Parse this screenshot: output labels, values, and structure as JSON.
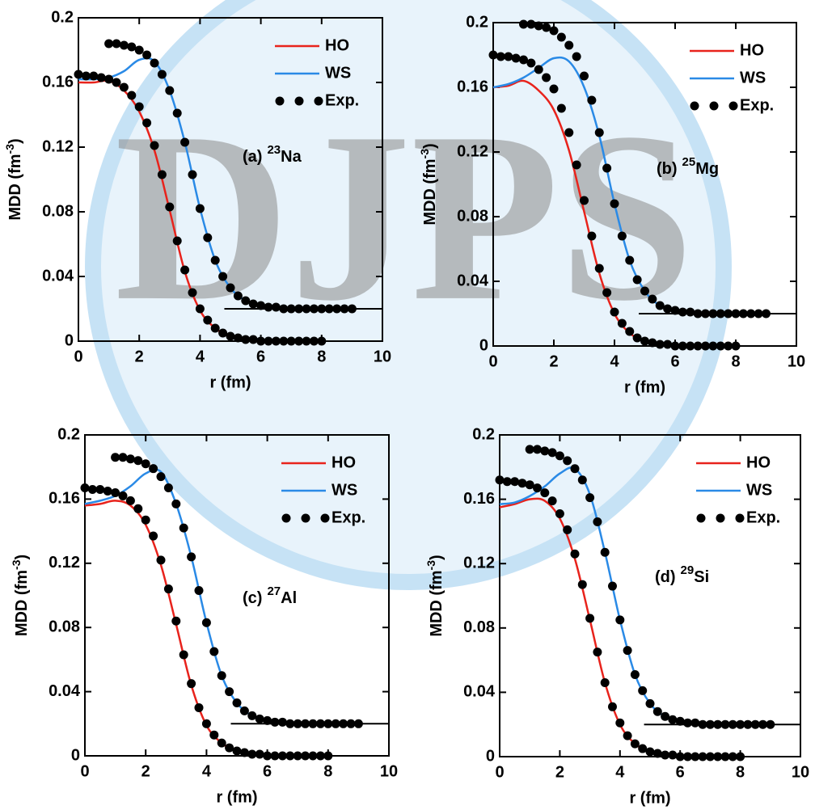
{
  "watermark": "DJPS",
  "chart_data": [
    {
      "type": "line",
      "panel_label": "(a)",
      "isotope_mass": "23",
      "isotope_element": "Na",
      "xlabel": "r (fm)",
      "ylabel": "MDD (fm",
      "ylabel_sup": "-3",
      "ylabel_end": ")",
      "xlim": [
        0,
        10
      ],
      "xticks": [
        0,
        2,
        4,
        6,
        8,
        10
      ],
      "ylim": [
        0,
        0.2
      ],
      "yticks": [
        0,
        0.04,
        0.08,
        0.12,
        0.16,
        0.2
      ],
      "series": [
        {
          "name": "HO",
          "type": "line",
          "color": "#e8231c",
          "x": [
            0,
            0.5,
            1,
            1.5,
            2,
            2.5,
            3,
            3.5,
            4,
            4.5,
            5,
            5.5,
            6,
            6.5,
            7,
            7.5,
            8
          ],
          "values": [
            0.16,
            0.16,
            0.161,
            0.155,
            0.142,
            0.118,
            0.081,
            0.043,
            0.019,
            0.008,
            0.003,
            0.001,
            0,
            0,
            0,
            0,
            0
          ]
        },
        {
          "name": "WS",
          "type": "line",
          "color": "#2a8ae6",
          "x": [
            0,
            0.5,
            1,
            1.5,
            2,
            2.5,
            3,
            3.5,
            4,
            4.5,
            5,
            5.5,
            6,
            6.5,
            7,
            7.5,
            8,
            8.5,
            9
          ],
          "values": [
            0.162,
            0.162,
            0.163,
            0.167,
            0.174,
            0.173,
            0.155,
            0.123,
            0.082,
            0.05,
            0.033,
            0.025,
            0.022,
            0.021,
            0.02,
            0.02,
            0.02,
            0.02,
            0.02
          ]
        },
        {
          "name": "Exp.",
          "type": "scatter",
          "color": "#000000",
          "x": [
            0,
            0.25,
            0.5,
            0.75,
            1,
            1.25,
            1.5,
            1.75,
            2,
            2.25,
            2.5,
            2.75,
            3,
            3.25,
            3.5,
            3.75,
            4,
            4.25,
            4.5,
            4.75,
            5,
            5.25,
            5.5,
            5.75,
            6,
            6.25,
            6.5,
            6.75,
            7,
            7.25,
            7.5,
            7.75,
            8,
            1,
            1.25,
            1.5,
            1.75,
            2,
            2.25,
            2.5,
            2.75,
            3,
            3.25,
            3.5,
            3.75,
            4,
            4.25,
            4.5,
            4.75,
            5,
            5.25,
            5.5,
            5.75,
            6,
            6.25,
            6.5,
            6.75,
            7,
            7.25,
            7.5,
            7.75,
            8,
            8.25,
            8.5,
            8.75,
            9
          ],
          "values": [
            0.165,
            0.164,
            0.164,
            0.163,
            0.162,
            0.16,
            0.157,
            0.152,
            0.145,
            0.135,
            0.121,
            0.103,
            0.083,
            0.062,
            0.044,
            0.03,
            0.02,
            0.013,
            0.008,
            0.005,
            0.003,
            0.002,
            0.001,
            0.001,
            0,
            0,
            0,
            0,
            0,
            0,
            0,
            0,
            0,
            0.184,
            0.184,
            0.183,
            0.182,
            0.18,
            0.177,
            0.172,
            0.165,
            0.155,
            0.141,
            0.123,
            0.103,
            0.082,
            0.064,
            0.05,
            0.04,
            0.033,
            0.028,
            0.025,
            0.023,
            0.022,
            0.021,
            0.021,
            0.02,
            0.02,
            0.02,
            0.02,
            0.02,
            0.02,
            0.02,
            0.02,
            0.02,
            0.02
          ]
        }
      ],
      "baseline": {
        "x": [
          4.8,
          10
        ],
        "values": [
          0.02,
          0.02
        ],
        "color": "#000000"
      }
    },
    {
      "type": "line",
      "panel_label": "(b)",
      "isotope_mass": "25",
      "isotope_element": "Mg",
      "xlabel": "r (fm)",
      "ylabel": "MDD (fm",
      "ylabel_sup": "-3",
      "ylabel_end": ")",
      "xlim": [
        0,
        10
      ],
      "xticks": [
        0,
        2,
        4,
        6,
        8,
        10
      ],
      "ylim": [
        0,
        0.2
      ],
      "yticks": [
        0,
        0.04,
        0.08,
        0.12,
        0.16,
        0.2
      ],
      "series": [
        {
          "name": "HO",
          "type": "line",
          "color": "#e8231c",
          "x": [
            0,
            0.5,
            1,
            1.5,
            2,
            2.5,
            3,
            3.5,
            4,
            4.5,
            5,
            5.5,
            6,
            6.5,
            7,
            7.5,
            8
          ],
          "values": [
            0.16,
            0.161,
            0.164,
            0.158,
            0.146,
            0.121,
            0.083,
            0.045,
            0.02,
            0.008,
            0.003,
            0.001,
            0,
            0,
            0,
            0,
            0
          ]
        },
        {
          "name": "WS",
          "type": "line",
          "color": "#2a8ae6",
          "x": [
            0,
            0.5,
            1,
            1.5,
            2,
            2.5,
            3,
            3.5,
            4,
            4.5,
            5,
            5.5,
            6,
            6.5,
            7,
            7.5,
            8,
            8.5,
            9
          ],
          "values": [
            0.16,
            0.162,
            0.166,
            0.172,
            0.178,
            0.176,
            0.16,
            0.13,
            0.088,
            0.053,
            0.034,
            0.025,
            0.022,
            0.021,
            0.02,
            0.02,
            0.02,
            0.02,
            0.02
          ]
        },
        {
          "name": "Exp.",
          "type": "scatter",
          "color": "#000000",
          "x": [
            0,
            0.25,
            0.5,
            0.75,
            1,
            1.25,
            1.5,
            1.75,
            2,
            2.25,
            2.5,
            2.75,
            3,
            3.25,
            3.5,
            3.75,
            4,
            4.25,
            4.5,
            4.75,
            5,
            5.25,
            5.5,
            5.75,
            6,
            6.25,
            6.5,
            6.75,
            7,
            7.25,
            7.5,
            7.75,
            8,
            1,
            1.25,
            1.5,
            1.75,
            2,
            2.25,
            2.5,
            2.75,
            3,
            3.25,
            3.5,
            3.75,
            4,
            4.25,
            4.5,
            4.75,
            5,
            5.25,
            5.5,
            5.75,
            6,
            6.25,
            6.5,
            6.75,
            7,
            7.25,
            7.5,
            7.75,
            8,
            8.25,
            8.5,
            8.75,
            9
          ],
          "values": [
            0.18,
            0.179,
            0.179,
            0.178,
            0.177,
            0.175,
            0.171,
            0.166,
            0.159,
            0.147,
            0.132,
            0.112,
            0.09,
            0.068,
            0.048,
            0.033,
            0.021,
            0.014,
            0.009,
            0.005,
            0.003,
            0.002,
            0.001,
            0.001,
            0,
            0,
            0,
            0,
            0,
            0,
            0,
            0,
            0,
            0.199,
            0.199,
            0.198,
            0.197,
            0.195,
            0.191,
            0.186,
            0.179,
            0.167,
            0.152,
            0.132,
            0.11,
            0.088,
            0.068,
            0.053,
            0.041,
            0.034,
            0.029,
            0.025,
            0.023,
            0.022,
            0.021,
            0.021,
            0.02,
            0.02,
            0.02,
            0.02,
            0.02,
            0.02,
            0.02,
            0.02,
            0.02,
            0.02
          ]
        }
      ],
      "baseline": {
        "x": [
          4.8,
          10
        ],
        "values": [
          0.02,
          0.02
        ],
        "color": "#000000"
      }
    },
    {
      "type": "line",
      "panel_label": "(c)",
      "isotope_mass": "27",
      "isotope_element": "Al",
      "xlabel": "r (fm)",
      "ylabel": "MDD (fm",
      "ylabel_sup": "-3",
      "ylabel_end": ")",
      "xlim": [
        0,
        10
      ],
      "xticks": [
        0,
        2,
        4,
        6,
        8,
        10
      ],
      "ylim": [
        0,
        0.2
      ],
      "yticks": [
        0,
        0.04,
        0.08,
        0.12,
        0.16,
        0.2
      ],
      "series": [
        {
          "name": "HO",
          "type": "line",
          "color": "#e8231c",
          "x": [
            0,
            0.5,
            1,
            1.5,
            2,
            2.5,
            3,
            3.5,
            4,
            4.5,
            5,
            5.5,
            6,
            6.5,
            7,
            7.5,
            8
          ],
          "values": [
            0.156,
            0.157,
            0.159,
            0.156,
            0.144,
            0.119,
            0.082,
            0.044,
            0.019,
            0.008,
            0.003,
            0.001,
            0,
            0,
            0,
            0,
            0
          ]
        },
        {
          "name": "WS",
          "type": "line",
          "color": "#2a8ae6",
          "x": [
            0,
            0.5,
            1,
            1.5,
            2,
            2.5,
            3,
            3.5,
            4,
            4.5,
            5,
            5.5,
            6,
            6.5,
            7,
            7.5,
            8,
            8.5,
            9
          ],
          "values": [
            0.157,
            0.159,
            0.162,
            0.168,
            0.176,
            0.177,
            0.157,
            0.124,
            0.083,
            0.05,
            0.033,
            0.025,
            0.022,
            0.021,
            0.02,
            0.02,
            0.02,
            0.02,
            0.02
          ]
        },
        {
          "name": "Exp.",
          "type": "scatter",
          "color": "#000000",
          "x": [
            0,
            0.25,
            0.5,
            0.75,
            1,
            1.25,
            1.5,
            1.75,
            2,
            2.25,
            2.5,
            2.75,
            3,
            3.25,
            3.5,
            3.75,
            4,
            4.25,
            4.5,
            4.75,
            5,
            5.25,
            5.5,
            5.75,
            6,
            6.25,
            6.5,
            6.75,
            7,
            7.25,
            7.5,
            7.75,
            8,
            1,
            1.25,
            1.5,
            1.75,
            2,
            2.25,
            2.5,
            2.75,
            3,
            3.25,
            3.5,
            3.75,
            4,
            4.25,
            4.5,
            4.75,
            5,
            5.25,
            5.5,
            5.75,
            6,
            6.25,
            6.5,
            6.75,
            7,
            7.25,
            7.5,
            7.75,
            8,
            8.25,
            8.5,
            8.75,
            9
          ],
          "values": [
            0.167,
            0.166,
            0.166,
            0.165,
            0.164,
            0.162,
            0.159,
            0.154,
            0.147,
            0.137,
            0.122,
            0.104,
            0.084,
            0.063,
            0.045,
            0.03,
            0.02,
            0.013,
            0.008,
            0.005,
            0.003,
            0.002,
            0.001,
            0.001,
            0,
            0,
            0,
            0,
            0,
            0,
            0,
            0,
            0,
            0.186,
            0.186,
            0.185,
            0.184,
            0.182,
            0.179,
            0.174,
            0.167,
            0.157,
            0.142,
            0.124,
            0.103,
            0.083,
            0.065,
            0.05,
            0.04,
            0.033,
            0.028,
            0.025,
            0.023,
            0.022,
            0.021,
            0.021,
            0.02,
            0.02,
            0.02,
            0.02,
            0.02,
            0.02,
            0.02,
            0.02,
            0.02,
            0.02
          ]
        }
      ],
      "baseline": {
        "x": [
          4.8,
          10
        ],
        "values": [
          0.02,
          0.02
        ],
        "color": "#000000"
      }
    },
    {
      "type": "line",
      "panel_label": "(d)",
      "isotope_mass": "29",
      "isotope_element": "Si",
      "xlabel": "r (fm)",
      "ylabel": "MDD (fm",
      "ylabel_sup": "-3",
      "ylabel_end": ")",
      "xlim": [
        0,
        10
      ],
      "xticks": [
        0,
        2,
        4,
        6,
        8,
        10
      ],
      "ylim": [
        0,
        0.2
      ],
      "yticks": [
        0,
        0.04,
        0.08,
        0.12,
        0.16,
        0.2
      ],
      "series": [
        {
          "name": "HO",
          "type": "line",
          "color": "#e8231c",
          "x": [
            0,
            0.5,
            1,
            1.5,
            2,
            2.5,
            3,
            3.5,
            4,
            4.5,
            5,
            5.5,
            6,
            6.5,
            7,
            7.5,
            8
          ],
          "values": [
            0.155,
            0.157,
            0.16,
            0.159,
            0.148,
            0.123,
            0.085,
            0.046,
            0.02,
            0.008,
            0.003,
            0.001,
            0,
            0,
            0,
            0,
            0
          ]
        },
        {
          "name": "WS",
          "type": "line",
          "color": "#2a8ae6",
          "x": [
            0,
            0.5,
            1,
            1.5,
            2,
            2.5,
            3,
            3.5,
            4,
            4.5,
            5,
            5.5,
            6,
            6.5,
            7,
            7.5,
            8,
            8.5,
            9
          ],
          "values": [
            0.157,
            0.158,
            0.162,
            0.168,
            0.176,
            0.179,
            0.163,
            0.127,
            0.085,
            0.051,
            0.033,
            0.025,
            0.022,
            0.021,
            0.02,
            0.02,
            0.02,
            0.02,
            0.02
          ]
        },
        {
          "name": "Exp.",
          "type": "scatter",
          "color": "#000000",
          "x": [
            0,
            0.25,
            0.5,
            0.75,
            1,
            1.25,
            1.5,
            1.75,
            2,
            2.25,
            2.5,
            2.75,
            3,
            3.25,
            3.5,
            3.75,
            4,
            4.25,
            4.5,
            4.75,
            5,
            5.25,
            5.5,
            5.75,
            6,
            6.25,
            6.5,
            6.75,
            7,
            7.25,
            7.5,
            7.75,
            8,
            1,
            1.25,
            1.5,
            1.75,
            2,
            2.25,
            2.5,
            2.75,
            3,
            3.25,
            3.5,
            3.75,
            4,
            4.25,
            4.5,
            4.75,
            5,
            5.25,
            5.5,
            5.75,
            6,
            6.25,
            6.5,
            6.75,
            7,
            7.25,
            7.5,
            7.75,
            8,
            8.25,
            8.5,
            8.75,
            9
          ],
          "values": [
            0.172,
            0.171,
            0.171,
            0.17,
            0.169,
            0.167,
            0.164,
            0.159,
            0.151,
            0.141,
            0.126,
            0.107,
            0.086,
            0.065,
            0.046,
            0.031,
            0.021,
            0.013,
            0.008,
            0.005,
            0.003,
            0.002,
            0.001,
            0.001,
            0,
            0,
            0,
            0,
            0,
            0,
            0,
            0,
            0,
            0.191,
            0.191,
            0.19,
            0.189,
            0.187,
            0.184,
            0.179,
            0.172,
            0.161,
            0.146,
            0.127,
            0.106,
            0.085,
            0.066,
            0.051,
            0.041,
            0.033,
            0.028,
            0.025,
            0.023,
            0.022,
            0.021,
            0.021,
            0.02,
            0.02,
            0.02,
            0.02,
            0.02,
            0.02,
            0.02,
            0.02,
            0.02,
            0.02
          ]
        }
      ],
      "baseline": {
        "x": [
          4.8,
          10
        ],
        "values": [
          0.02,
          0.02
        ],
        "color": "#000000"
      }
    }
  ]
}
